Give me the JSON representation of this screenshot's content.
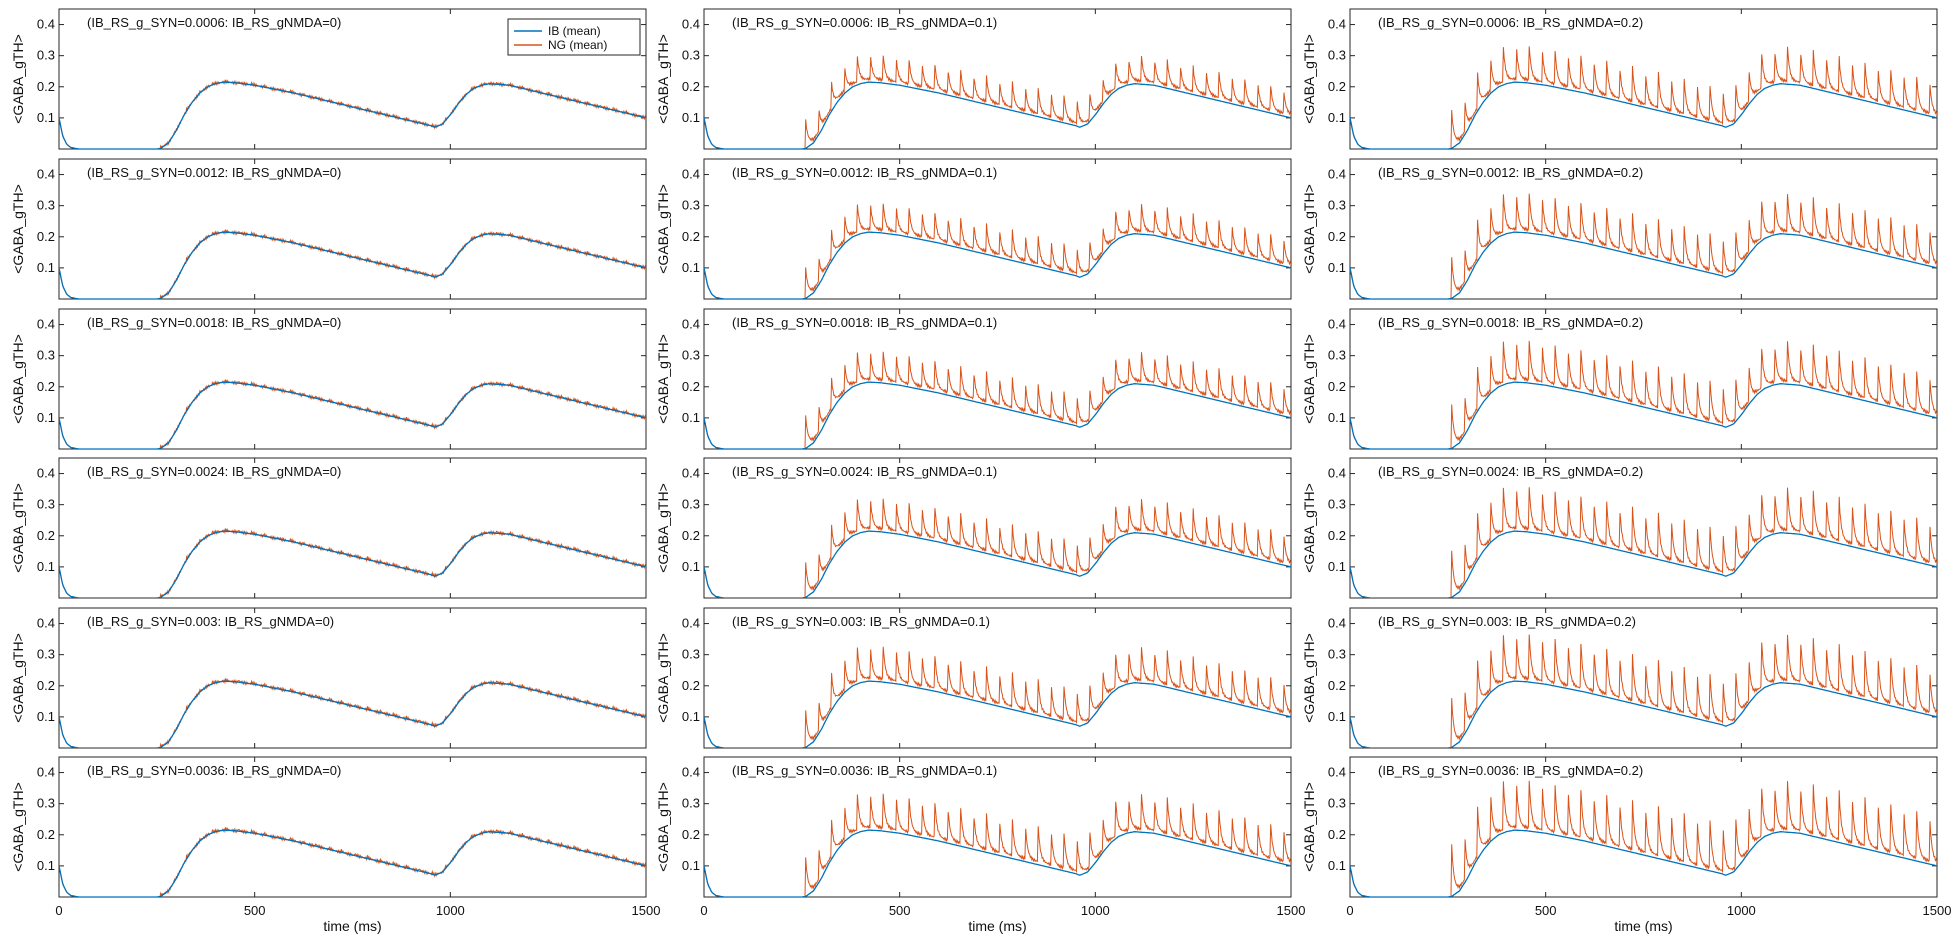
{
  "figure": {
    "ylabel": "<GABA_gTH>",
    "xlabel": "time (ms)",
    "legend": {
      "entries": [
        "IB (mean)",
        "NG (mean)"
      ],
      "placement": "top-right of first panel"
    },
    "colors": {
      "IB": "#0072BD",
      "NG": "#D95319",
      "axes": "#262626"
    }
  },
  "chart_data": {
    "type": "line",
    "layout": {
      "rows": 6,
      "cols": 3
    },
    "xlim": [
      0,
      1500
    ],
    "ylim": [
      0,
      0.45
    ],
    "xticks": [
      0,
      500,
      1000,
      1500
    ],
    "yticks": [
      0.1,
      0.2,
      0.3,
      0.4
    ],
    "series_names": [
      "IB (mean)",
      "NG (mean)"
    ],
    "ib_curve": {
      "x": [
        0,
        5,
        10,
        20,
        30,
        50,
        70,
        100,
        200,
        250,
        260,
        280,
        300,
        320,
        340,
        360,
        380,
        400,
        420,
        450,
        500,
        600,
        700,
        800,
        900,
        950,
        960,
        980,
        1000,
        1020,
        1040,
        1060,
        1080,
        1100,
        1150,
        1200,
        1300,
        1400,
        1500
      ],
      "y": [
        0.1,
        0.07,
        0.04,
        0.015,
        0.005,
        0,
        0,
        0,
        0,
        0,
        0.002,
        0.02,
        0.06,
        0.11,
        0.15,
        0.18,
        0.2,
        0.21,
        0.215,
        0.213,
        0.205,
        0.18,
        0.15,
        0.12,
        0.09,
        0.075,
        0.07,
        0.08,
        0.11,
        0.145,
        0.175,
        0.195,
        0.205,
        0.21,
        0.205,
        0.19,
        0.16,
        0.13,
        0.1
      ]
    },
    "panels": [
      {
        "title": "(IB_RS_g_SYN=0.0006: IB_RS_gNMDA=0)"
      },
      {
        "title": "(IB_RS_g_SYN=0.0006: IB_RS_gNMDA=0.1)"
      },
      {
        "title": "(IB_RS_g_SYN=0.0006: IB_RS_gNMDA=0.2)"
      },
      {
        "title": "(IB_RS_g_SYN=0.0012: IB_RS_gNMDA=0)"
      },
      {
        "title": "(IB_RS_g_SYN=0.0012: IB_RS_gNMDA=0.1)"
      },
      {
        "title": "(IB_RS_g_SYN=0.0012: IB_RS_gNMDA=0.2)"
      },
      {
        "title": "(IB_RS_g_SYN=0.0018: IB_RS_gNMDA=0)"
      },
      {
        "title": "(IB_RS_g_SYN=0.0018: IB_RS_gNMDA=0.1)"
      },
      {
        "title": "(IB_RS_g_SYN=0.0018: IB_RS_gNMDA=0.2)"
      },
      {
        "title": "(IB_RS_g_SYN=0.0024: IB_RS_gNMDA=0)"
      },
      {
        "title": "(IB_RS_g_SYN=0.0024: IB_RS_gNMDA=0.1)"
      },
      {
        "title": "(IB_RS_g_SYN=0.0024: IB_RS_gNMDA=0.2)"
      },
      {
        "title": "(IB_RS_g_SYN=0.003: IB_RS_gNMDA=0)"
      },
      {
        "title": "(IB_RS_g_SYN=0.003: IB_RS_gNMDA=0.1)"
      },
      {
        "title": "(IB_RS_g_SYN=0.003: IB_RS_gNMDA=0.2)"
      },
      {
        "title": "(IB_RS_g_SYN=0.0036: IB_RS_gNMDA=0)"
      },
      {
        "title": "(IB_RS_g_SYN=0.0036: IB_RS_gNMDA=0.1)"
      },
      {
        "title": "(IB_RS_g_SYN=0.0036: IB_RS_gNMDA=0.2)"
      }
    ],
    "ng_spike_amplitude_by_column": [
      0.005,
      0.08,
      0.11
    ],
    "ng_spike_period_ms": 33,
    "ng_spike_onset_ms": 260
  }
}
